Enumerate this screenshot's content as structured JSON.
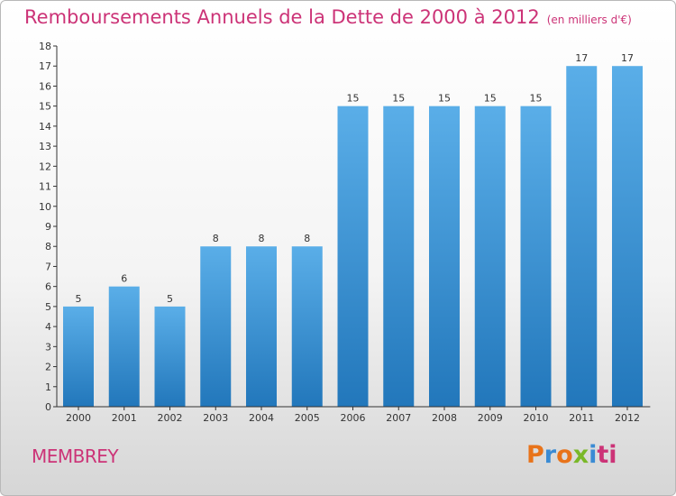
{
  "header": {
    "title": "Remboursements Annuels de la Dette de 2000 à 2012",
    "unit": "(en milliers d'€)"
  },
  "footer": {
    "commune": "MEMBREY",
    "logo_letters": [
      "P",
      "r",
      "o",
      "x",
      "i",
      "ti"
    ]
  },
  "colors": {
    "title": "#cc3377",
    "bar_top": "#5aaee8",
    "bar_bottom": "#2277bb",
    "axis": "#333333"
  },
  "chart_data": {
    "type": "bar",
    "title": "Remboursements Annuels de la Dette de 2000 à 2012",
    "categories": [
      "2000",
      "2001",
      "2002",
      "2003",
      "2004",
      "2005",
      "2006",
      "2007",
      "2008",
      "2009",
      "2010",
      "2011",
      "2012"
    ],
    "values": [
      5,
      6,
      5,
      8,
      8,
      8,
      15,
      15,
      15,
      15,
      15,
      17,
      17
    ],
    "ylim": [
      0,
      18
    ],
    "yticks": [
      "0",
      "1",
      "2",
      "3",
      "4",
      "5",
      "6",
      "7",
      "8",
      "9",
      "10",
      "11",
      "12",
      "13",
      "14",
      "15",
      "16",
      "17",
      "18"
    ],
    "grid": false,
    "legend": "none"
  }
}
